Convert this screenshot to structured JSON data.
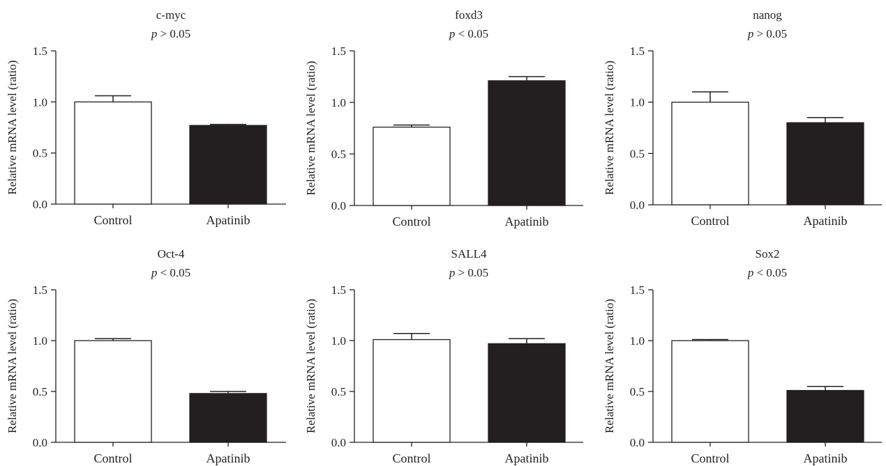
{
  "chart_data": [
    {
      "type": "bar",
      "title": "c-myc",
      "subtitle": {
        "p": "p",
        "rest": " > 0.05"
      },
      "ylabel": "Relative mRNA level (ratio)",
      "xlabel": "",
      "categories": [
        "Control",
        "Apatinib"
      ],
      "values": [
        1.0,
        0.77
      ],
      "errors": [
        0.06,
        0.01
      ],
      "colors": [
        "#ffffff",
        "#231f20"
      ],
      "ylim": [
        0,
        1.5
      ],
      "yticks": [
        "0.0",
        "0.5",
        "1.0",
        "1.5"
      ],
      "ytick_values": [
        0,
        0.5,
        1.0,
        1.5
      ]
    },
    {
      "type": "bar",
      "title": "foxd3",
      "subtitle": {
        "p": "p",
        "rest": " < 0.05"
      },
      "ylabel": "Relative mRNA level (ratio)",
      "xlabel": "",
      "categories": [
        "Control",
        "Apatinib"
      ],
      "values": [
        0.76,
        1.21
      ],
      "errors": [
        0.02,
        0.04
      ],
      "colors": [
        "#ffffff",
        "#231f20"
      ],
      "ylim": [
        0,
        1.5
      ],
      "yticks": [
        "0.0",
        "0.5",
        "1.0",
        "1.5"
      ],
      "ytick_values": [
        0,
        0.5,
        1.0,
        1.5
      ]
    },
    {
      "type": "bar",
      "title": "nanog",
      "subtitle": {
        "p": "p",
        "rest": " > 0.05"
      },
      "ylabel": "Relative mRNA level (ratio)",
      "xlabel": "",
      "categories": [
        "Control",
        "Apatinib"
      ],
      "values": [
        1.0,
        0.8
      ],
      "errors": [
        0.1,
        0.05
      ],
      "colors": [
        "#ffffff",
        "#231f20"
      ],
      "ylim": [
        0,
        1.5
      ],
      "yticks": [
        "0.0",
        "0.5",
        "1.0",
        "1.5"
      ],
      "ytick_values": [
        0,
        0.5,
        1.0,
        1.5
      ]
    },
    {
      "type": "bar",
      "title": "Oct-4",
      "subtitle": {
        "p": "p",
        "rest": " < 0.05"
      },
      "ylabel": "Relative mRNA level (ratio)",
      "xlabel": "",
      "categories": [
        "Control",
        "Apatinib"
      ],
      "values": [
        1.0,
        0.48
      ],
      "errors": [
        0.02,
        0.02
      ],
      "colors": [
        "#ffffff",
        "#231f20"
      ],
      "ylim": [
        0,
        1.5
      ],
      "yticks": [
        "0.0",
        "0.5",
        "1.0",
        "1.5"
      ],
      "ytick_values": [
        0,
        0.5,
        1.0,
        1.5
      ]
    },
    {
      "type": "bar",
      "title": "SALL4",
      "subtitle": {
        "p": "p",
        "rest": " > 0.05"
      },
      "ylabel": "Relative mRNA level (ratio)",
      "xlabel": "",
      "categories": [
        "Control",
        "Apatinib"
      ],
      "values": [
        1.01,
        0.97
      ],
      "errors": [
        0.06,
        0.05
      ],
      "colors": [
        "#ffffff",
        "#231f20"
      ],
      "ylim": [
        0,
        1.5
      ],
      "yticks": [
        "0.0",
        "0.5",
        "1.0",
        "1.5"
      ],
      "ytick_values": [
        0,
        0.5,
        1.0,
        1.5
      ]
    },
    {
      "type": "bar",
      "title": "Sox2",
      "subtitle": {
        "p": "p",
        "rest": " < 0.05"
      },
      "ylabel": "Relative mRNA level (ratio)",
      "xlabel": "",
      "categories": [
        "Control",
        "Apatinib"
      ],
      "values": [
        1.0,
        0.51
      ],
      "errors": [
        0.01,
        0.04
      ],
      "colors": [
        "#ffffff",
        "#231f20"
      ],
      "ylim": [
        0,
        1.5
      ],
      "yticks": [
        "0.0",
        "0.5",
        "1.0",
        "1.5"
      ],
      "ytick_values": [
        0,
        0.5,
        1.0,
        1.5
      ]
    }
  ]
}
